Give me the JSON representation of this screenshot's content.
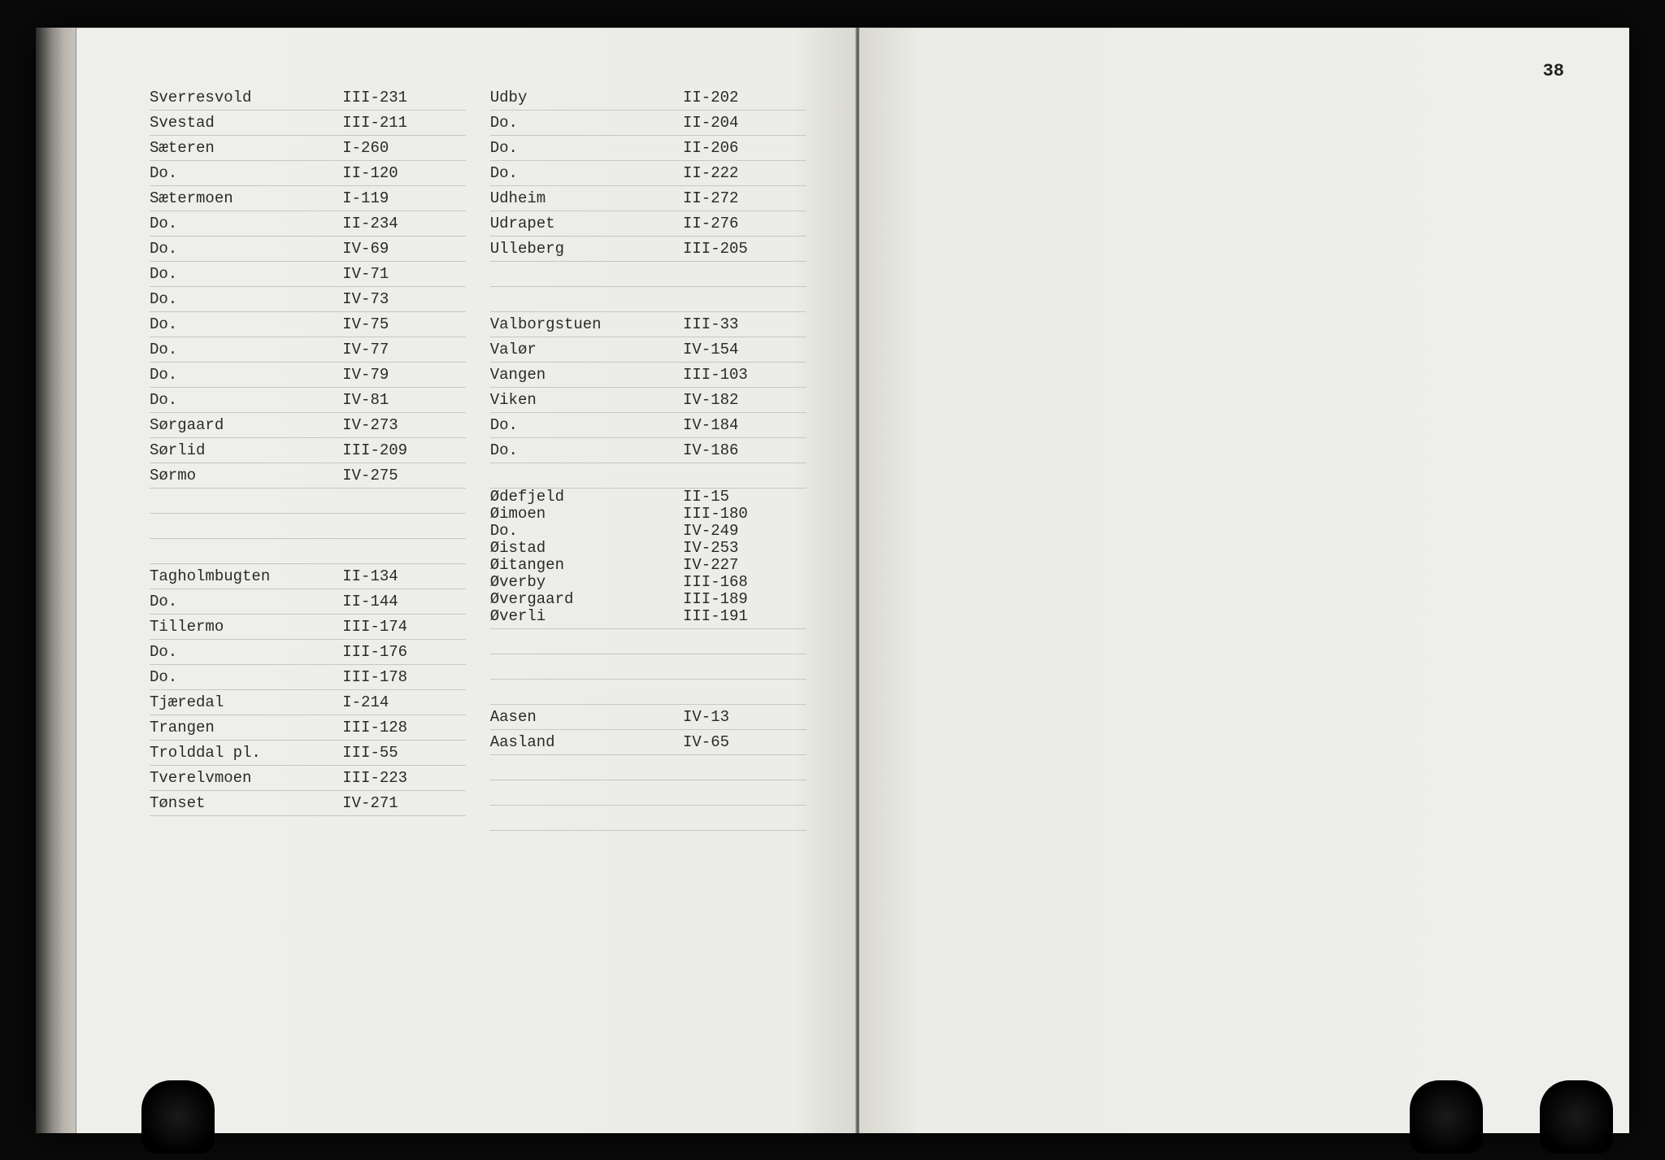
{
  "page_number": "38",
  "typography": {
    "font_family": "Courier New (typewriter)",
    "font_size_pt": 14,
    "color": "#2a2a2a",
    "rule_color": "#c8c8c2"
  },
  "paper": {
    "left_bg": "#eeeeea",
    "right_bg": "#eeeeea",
    "spine_shadow": "#d8d8d0"
  },
  "left_page": {
    "column1": [
      {
        "name": "Sverresvold",
        "ref": "III-231"
      },
      {
        "name": "Svestad",
        "ref": "III-211"
      },
      {
        "name": "Sæteren",
        "ref": "I-260"
      },
      {
        "name": "Do.",
        "ref": "II-120"
      },
      {
        "name": "Sætermoen",
        "ref": "I-119"
      },
      {
        "name": "Do.",
        "ref": "II-234"
      },
      {
        "name": "Do.",
        "ref": "IV-69"
      },
      {
        "name": "Do.",
        "ref": "IV-71"
      },
      {
        "name": "Do.",
        "ref": "IV-73"
      },
      {
        "name": "Do.",
        "ref": "IV-75"
      },
      {
        "name": "Do.",
        "ref": "IV-77"
      },
      {
        "name": "Do.",
        "ref": "IV-79"
      },
      {
        "name": "Do.",
        "ref": "IV-81"
      },
      {
        "name": "Sørgaard",
        "ref": "IV-273"
      },
      {
        "name": "Sørlid",
        "ref": "III-209"
      },
      {
        "name": "Sørmo",
        "ref": "IV-275"
      },
      {
        "name": "",
        "ref": ""
      },
      {
        "name": "",
        "ref": ""
      },
      {
        "name": "",
        "ref": ""
      },
      {
        "name": "Tagholmbugten",
        "ref": "II-134"
      },
      {
        "name": "Do.",
        "ref": "II-144"
      },
      {
        "name": "Tillermo",
        "ref": "III-174"
      },
      {
        "name": "Do.",
        "ref": "III-176"
      },
      {
        "name": "Do.",
        "ref": "III-178"
      },
      {
        "name": "Tjæredal",
        "ref": "I-214"
      },
      {
        "name": "Trangen",
        "ref": "III-128"
      },
      {
        "name": "Trolddal pl.",
        "ref": "III-55"
      },
      {
        "name": "Tverelvmoen",
        "ref": "III-223"
      },
      {
        "name": "Tønset",
        "ref": "IV-271"
      }
    ],
    "column2_top": [
      {
        "name": "Udby",
        "ref": "II-202"
      },
      {
        "name": "Do.",
        "ref": "II-204"
      },
      {
        "name": "Do.",
        "ref": "II-206"
      },
      {
        "name": "Do.",
        "ref": "II-222"
      },
      {
        "name": "Udheim",
        "ref": "II-272"
      },
      {
        "name": "Udrapet",
        "ref": "II-276"
      },
      {
        "name": "Ulleberg",
        "ref": "III-205"
      },
      {
        "name": "",
        "ref": ""
      },
      {
        "name": "",
        "ref": ""
      },
      {
        "name": "Valborgstuen",
        "ref": "III-33"
      },
      {
        "name": "Valør",
        "ref": "IV-154"
      },
      {
        "name": "Vangen",
        "ref": "III-103"
      },
      {
        "name": "Viken",
        "ref": "IV-182"
      },
      {
        "name": "Do.",
        "ref": "IV-184"
      },
      {
        "name": "Do.",
        "ref": "IV-186"
      },
      {
        "name": "",
        "ref": ""
      }
    ],
    "column2_tight": [
      {
        "name": "Ødefjeld",
        "ref": "II-15"
      },
      {
        "name": "Øimoen",
        "ref": "III-180"
      },
      {
        "name": "Do.",
        "ref": "IV-249"
      },
      {
        "name": "Øistad",
        "ref": "IV-253"
      },
      {
        "name": "Øitangen",
        "ref": "IV-227"
      },
      {
        "name": "Øverby",
        "ref": "III-168"
      },
      {
        "name": "Øvergaard",
        "ref": "III-189"
      },
      {
        "name": "Øverli",
        "ref": "III-191"
      }
    ],
    "column2_bottom": [
      {
        "name": "",
        "ref": ""
      },
      {
        "name": "",
        "ref": ""
      },
      {
        "name": "",
        "ref": ""
      },
      {
        "name": "Aasen",
        "ref": "IV-13"
      },
      {
        "name": "Aasland",
        "ref": "IV-65"
      },
      {
        "name": "",
        "ref": ""
      },
      {
        "name": "",
        "ref": ""
      },
      {
        "name": "",
        "ref": ""
      }
    ]
  }
}
